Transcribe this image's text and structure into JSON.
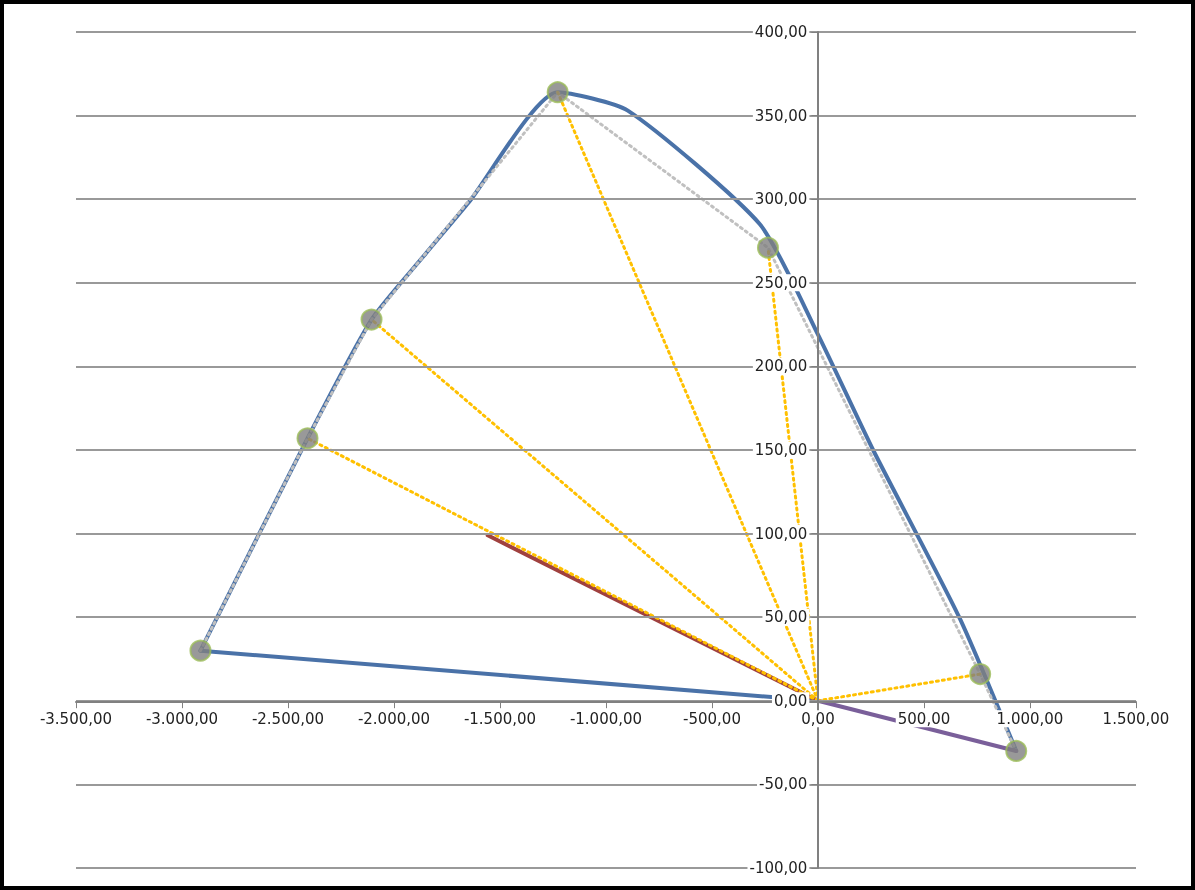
{
  "chart_data": {
    "type": "line",
    "grid": "y",
    "xlim": [
      -3500,
      1500
    ],
    "xticks": [
      {
        "value": -3500,
        "label": "-3.500,00"
      },
      {
        "value": -3000,
        "label": "-3.000,00"
      },
      {
        "value": -2500,
        "label": "-2.500,00"
      },
      {
        "value": -2000,
        "label": "-2.000,00"
      },
      {
        "value": -1500,
        "label": "-1.500,00"
      },
      {
        "value": -1000,
        "label": "-1.000,00"
      },
      {
        "value": -500,
        "label": "-500,00"
      },
      {
        "value": 0,
        "label": "0,00"
      },
      {
        "value": 500,
        "label": "500,00"
      },
      {
        "value": 1000,
        "label": "1.000,00"
      },
      {
        "value": 1500,
        "label": "1.500,00"
      }
    ],
    "ylim": [
      -100,
      400
    ],
    "yticks": [
      {
        "value": -100,
        "label": "-100,00"
      },
      {
        "value": -50,
        "label": "-50,00"
      },
      {
        "value": 0,
        "label": "0,00"
      },
      {
        "value": 50,
        "label": "50,00"
      },
      {
        "value": 100,
        "label": "100,00"
      },
      {
        "value": 150,
        "label": "150,00"
      },
      {
        "value": 200,
        "label": "200,00"
      },
      {
        "value": 250,
        "label": "250,00"
      },
      {
        "value": 300,
        "label": "300,00"
      },
      {
        "value": 350,
        "label": "350,00"
      },
      {
        "value": 400,
        "label": "400,00"
      }
    ],
    "series": [
      {
        "color": "#4a72a8",
        "line_style": "solid",
        "marker": "none",
        "x": [
          -2913,
          0
        ],
        "values": [
          30,
          0
        ]
      },
      {
        "color": "#4a72a8",
        "line_style": "solid",
        "marker": "none",
        "x": [
          -2913,
          -2408,
          -2106,
          -1860,
          -1648,
          -1228,
          -897,
          -274,
          0,
          260,
          666,
          935
        ],
        "values": [
          30,
          157,
          228,
          266,
          298,
          364,
          353,
          285,
          219,
          150,
          50,
          -30
        ]
      },
      {
        "color": "#c0c0c0",
        "line_style": "dotted",
        "marker": "none",
        "x": [
          -2913,
          -2408,
          -2106,
          -1228,
          -236,
          765,
          935
        ],
        "values": [
          30,
          157,
          228,
          364,
          271,
          16,
          -30
        ]
      },
      {
        "color": "#a0413f",
        "line_style": "solid",
        "marker": "none",
        "x": [
          -1558,
          0
        ],
        "values": [
          99,
          0
        ]
      },
      {
        "color": "#7a5f9a",
        "line_style": "solid",
        "marker": "none",
        "x": [
          0,
          935
        ],
        "values": [
          0,
          -30
        ]
      },
      {
        "color": "#ffc000",
        "line_style": "dotted",
        "marker": "none",
        "x": [
          0,
          -2408
        ],
        "values": [
          0,
          157
        ]
      },
      {
        "color": "#ffc000",
        "line_style": "dotted",
        "marker": "none",
        "x": [
          0,
          -2106
        ],
        "values": [
          0,
          228
        ]
      },
      {
        "color": "#ffc000",
        "line_style": "dotted",
        "marker": "none",
        "x": [
          0,
          -1228
        ],
        "values": [
          0,
          364
        ]
      },
      {
        "color": "#ffc000",
        "line_style": "dotted",
        "marker": "none",
        "x": [
          0,
          -236
        ],
        "values": [
          0,
          271
        ]
      },
      {
        "color": "#ffc000",
        "line_style": "dotted",
        "marker": "none",
        "x": [
          0,
          765
        ],
        "values": [
          0,
          16
        ]
      },
      {
        "type": "scatter",
        "color": "#7f7f7f",
        "marker": "circle",
        "x": [
          -2913,
          -2408,
          -2106,
          -1228,
          -236,
          765,
          935
        ],
        "values": [
          30,
          157,
          228,
          364,
          271,
          16,
          -30
        ]
      }
    ]
  }
}
